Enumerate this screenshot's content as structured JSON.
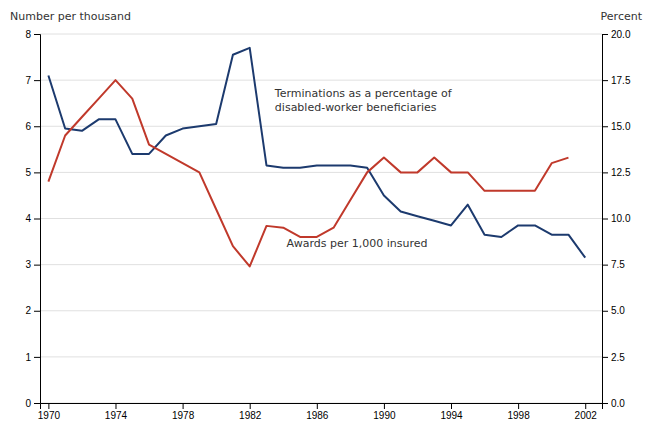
{
  "chart_data": {
    "type": "line",
    "ylabel": "Number per thousand",
    "y2label": "Percent",
    "x": [
      1970,
      1971,
      1972,
      1973,
      1974,
      1975,
      1976,
      1977,
      1978,
      1979,
      1980,
      1981,
      1982,
      1983,
      1984,
      1985,
      1986,
      1987,
      1988,
      1989,
      1990,
      1991,
      1992,
      1993,
      1994,
      1995,
      1996,
      1997,
      1998,
      1999,
      2000,
      2001,
      2002
    ],
    "series": [
      {
        "color": "#1c3a6e",
        "axis": "y",
        "values": [
          7.1,
          5.95,
          5.9,
          6.15,
          6.15,
          5.4,
          5.4,
          5.8,
          5.95,
          6.0,
          6.05,
          7.55,
          7.7,
          5.15,
          5.1,
          5.1,
          5.15,
          5.15,
          5.15,
          5.1,
          4.5,
          4.15,
          4.05,
          3.95,
          3.85,
          4.3,
          3.65,
          3.6,
          3.85,
          3.85,
          3.65,
          3.65,
          3.15
        ]
      },
      {
        "color": "#c0392b",
        "axis": "y2",
        "values": [
          12.0,
          14.5,
          15.5,
          16.5,
          17.5,
          16.5,
          14.0,
          13.5,
          13.0,
          12.5,
          10.5,
          8.5,
          7.4,
          9.6,
          9.5,
          9.0,
          9.0,
          9.5,
          11.0,
          12.5,
          13.3,
          12.5,
          12.5,
          13.3,
          12.5,
          12.5,
          11.5,
          11.5,
          11.5,
          11.5,
          13.0,
          13.3,
          null
        ]
      }
    ],
    "xlim": [
      1969.5,
      2003.0
    ],
    "xticks": [
      1970,
      1974,
      1978,
      1982,
      1986,
      1990,
      1994,
      1998,
      2002
    ],
    "ylim": [
      0,
      8
    ],
    "yticks": [
      0,
      1,
      2,
      3,
      4,
      5,
      6,
      7,
      8
    ],
    "y2lim": [
      0,
      20
    ],
    "y2ticks": [
      {
        "value": 0,
        "label": "0.0"
      },
      2.5,
      {
        "value": 5,
        "label": "5.0"
      },
      7.5,
      {
        "value": 10,
        "label": "10.0"
      },
      12.5,
      {
        "value": 15,
        "label": "15.0"
      },
      17.5,
      {
        "value": 20,
        "label": "20.0"
      }
    ],
    "grid": true,
    "annotations": [
      {
        "text": "Terminations as a percentage of\ndisabled-worker beneficiaries",
        "x": 1983.5,
        "y": 17.0,
        "axis": "y2"
      },
      {
        "text": "Awards per 1,000 insured",
        "x": 1984.2,
        "y": 3.55,
        "axis": "y"
      }
    ]
  }
}
